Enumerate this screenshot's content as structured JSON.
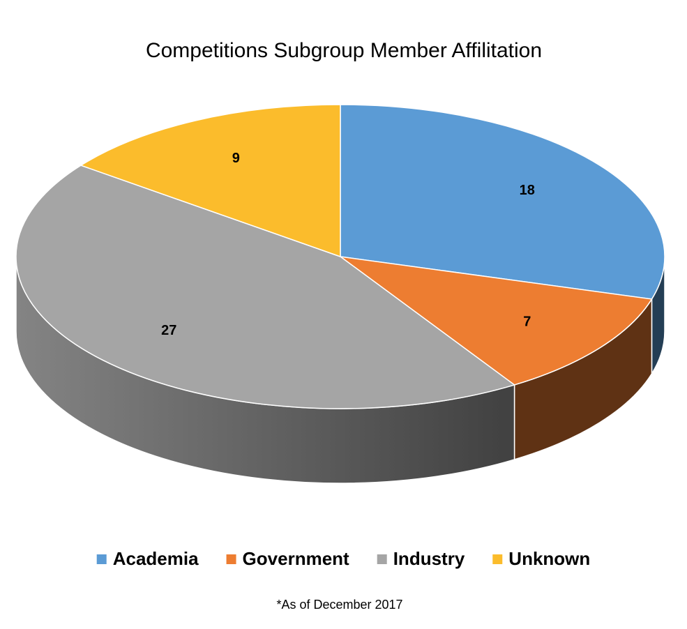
{
  "chart_data": {
    "type": "pie",
    "title": "Competitions Subgroup Member Affilitation",
    "categories": [
      "Academia",
      "Government",
      "Industry",
      "Unknown"
    ],
    "values": [
      18,
      7,
      27,
      9
    ],
    "colors": [
      "#5B9BD5",
      "#ED7D31",
      "#A5A5A5",
      "#FBBC2C"
    ],
    "legend": "bottom",
    "footnote": "*As of December 2017"
  }
}
